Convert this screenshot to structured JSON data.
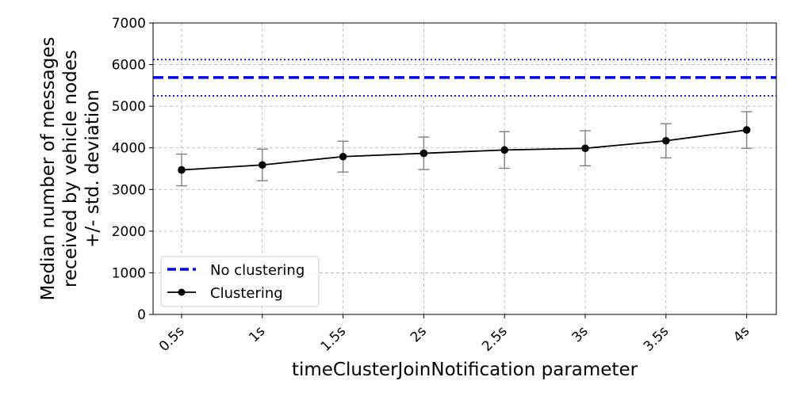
{
  "chart_data": {
    "type": "line",
    "title": "",
    "xlabel": "timeClusterJoinNotification parameter",
    "ylabel_lines": [
      "Median number of messages",
      "received by vehicle nodes",
      "+/- std. deviation"
    ],
    "categories": [
      "0.5s",
      "1s",
      "1.5s",
      "2s",
      "2.5s",
      "3s",
      "3.5s",
      "4s"
    ],
    "ylim": [
      0,
      7000
    ],
    "yticks": [
      "0",
      "1000",
      "2000",
      "3000",
      "4000",
      "5000",
      "6000",
      "7000"
    ],
    "grid": true,
    "legend_position": "lower-left",
    "series": [
      {
        "name": "Clustering",
        "style": "line-marker-errorbar",
        "color": "#000000",
        "errorbar_color": "#808080",
        "values": [
          3470,
          3590,
          3790,
          3870,
          3950,
          3990,
          4170,
          4430
        ],
        "error": [
          380,
          380,
          370,
          390,
          440,
          420,
          410,
          440
        ]
      },
      {
        "name": "No clustering",
        "style": "horizontal-dashed",
        "color": "#0000ee",
        "value": 5690,
        "band": [
          5250,
          6120
        ]
      }
    ],
    "legend": [
      {
        "label": "No clustering",
        "style": "dashed",
        "color": "#0000ee"
      },
      {
        "label": "Clustering",
        "style": "line-marker",
        "color": "#000000"
      }
    ]
  }
}
